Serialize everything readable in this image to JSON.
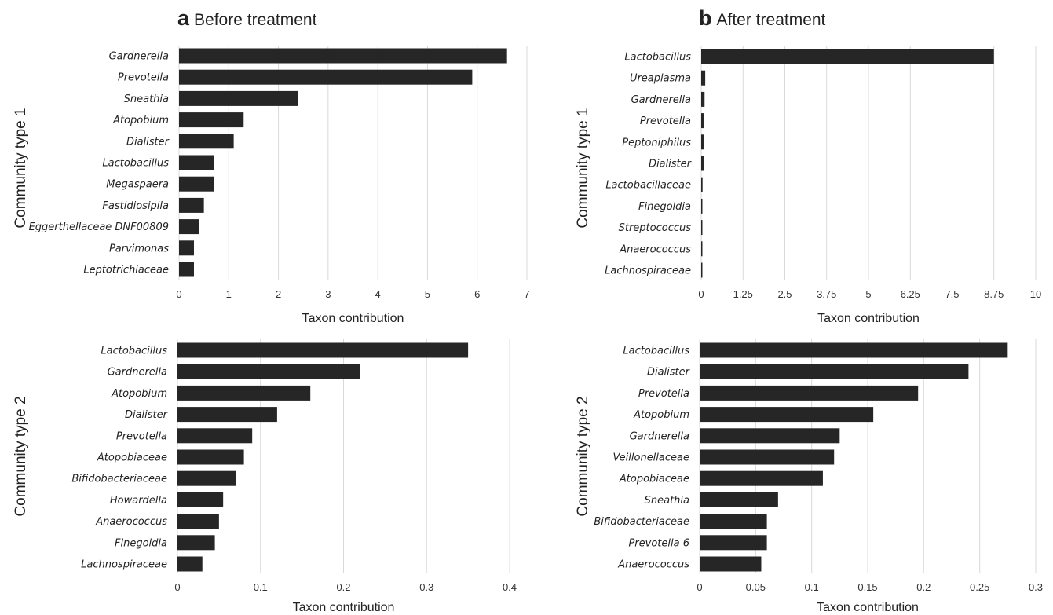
{
  "panels": {
    "a": {
      "letter": "a",
      "title": "Before treatment"
    },
    "b": {
      "letter": "b",
      "title": "After treatment"
    }
  },
  "chart_data": [
    {
      "type": "bar",
      "orientation": "horizontal",
      "panel": "a",
      "row_label": "Community type 1",
      "xlabel": "Taxon contribution",
      "xlim": [
        0,
        7
      ],
      "xticks": [
        0,
        1,
        2,
        3,
        4,
        5,
        6,
        7
      ],
      "grid": true,
      "bar_color": "#262626",
      "categories": [
        "Gardnerella",
        "Prevotella",
        "Sneathia",
        "Atopobium",
        "Dialister",
        "Lactobacillus",
        "Megaspaera",
        "Fastidiosipila",
        "Eggerthellaceae DNF00809",
        "Parvimonas",
        "Leptotrichiaceae"
      ],
      "values": [
        6.6,
        5.9,
        2.4,
        1.3,
        1.1,
        0.7,
        0.7,
        0.5,
        0.4,
        0.3,
        0.3
      ]
    },
    {
      "type": "bar",
      "orientation": "horizontal",
      "panel": "b",
      "row_label": "Community type 1",
      "xlabel": "Taxon contribution",
      "xlim": [
        0,
        10
      ],
      "xticks": [
        "0",
        "1.25",
        "2.5",
        "3.75",
        "5",
        "6.25",
        "7.5",
        "8.75",
        "10"
      ],
      "grid": true,
      "bar_color": "#262626",
      "categories": [
        "Lactobacillus",
        "Ureaplasma",
        "Gardnerella",
        "Prevotella",
        "Peptoniphilus",
        "Dialister",
        "Lactobacillaceae",
        "Finegoldia",
        "Streptococcus",
        "Anaerococcus",
        "Lachnospiraceae"
      ],
      "values": [
        8.75,
        0.12,
        0.1,
        0.07,
        0.07,
        0.07,
        0.04,
        0.03,
        0.02,
        0.02,
        0.02
      ]
    },
    {
      "type": "bar",
      "orientation": "horizontal",
      "panel": "a",
      "row_label": "Community type 2",
      "xlabel": "Taxon contribution",
      "xlim": [
        0,
        0.4
      ],
      "xticks": [
        "0",
        "0.1",
        "0.2",
        "0.3",
        "0.4"
      ],
      "grid": true,
      "bar_color": "#262626",
      "categories": [
        "Lactobacillus",
        "Gardnerella",
        "Atopobium",
        "Dialister",
        "Prevotella",
        "Atopobiaceae",
        "Bifidobacteriaceae",
        "Howardella",
        "Anaerococcus",
        "Finegoldia",
        "Lachnospiraceae"
      ],
      "values": [
        0.35,
        0.22,
        0.16,
        0.12,
        0.09,
        0.08,
        0.07,
        0.055,
        0.05,
        0.045,
        0.03
      ]
    },
    {
      "type": "bar",
      "orientation": "horizontal",
      "panel": "b",
      "row_label": "Community type 2",
      "xlabel": "Taxon contribution",
      "xlim": [
        0,
        0.3
      ],
      "xticks": [
        "0",
        "0.05",
        "0.1",
        "0.15",
        "0.2",
        "0.25",
        "0.3"
      ],
      "grid": true,
      "bar_color": "#262626",
      "categories": [
        "Lactobacillus",
        "Dialister",
        "Prevotella",
        "Atopobium",
        "Gardnerella",
        "Veillonellaceae",
        "Atopobiaceae",
        "Sneathia",
        "Bifidobacteriaceae",
        "Prevotella 6",
        "Anaerococcus"
      ],
      "values": [
        0.275,
        0.24,
        0.195,
        0.155,
        0.125,
        0.12,
        0.11,
        0.07,
        0.06,
        0.06,
        0.055
      ]
    }
  ]
}
